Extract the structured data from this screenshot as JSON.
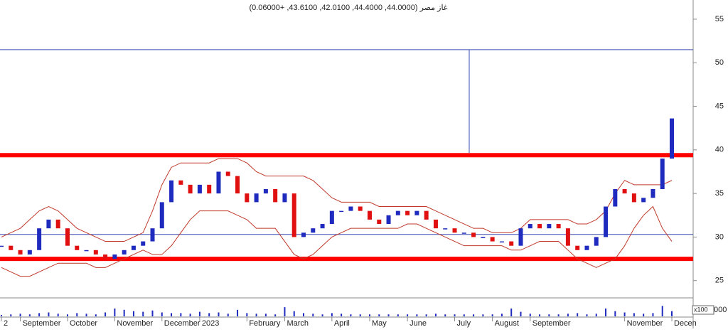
{
  "chart_data": {
    "type": "stock",
    "title": "غاز مصر (44.0000, 44.4000, 42.0100, 43.6100, +0.06000)",
    "categories": [
      "2",
      null,
      "September",
      null,
      null,
      null,
      null,
      "October",
      null,
      null,
      null,
      null,
      "November",
      null,
      null,
      null,
      null,
      "December",
      null,
      null,
      null,
      "2023",
      null,
      null,
      null,
      null,
      "February",
      null,
      null,
      null,
      "March",
      null,
      null,
      null,
      null,
      "April",
      null,
      null,
      null,
      "May",
      null,
      null,
      null,
      "June",
      null,
      null,
      null,
      null,
      "July",
      null,
      null,
      null,
      "August",
      null,
      null,
      null,
      "September",
      null,
      null,
      null,
      null,
      null,
      null,
      null,
      null,
      null,
      "November",
      null,
      null,
      null,
      null,
      "Decen"
    ],
    "close": [
      29,
      28.5,
      28,
      28.5,
      31,
      32,
      31,
      29,
      28.5,
      28.5,
      28,
      27.5,
      28,
      28.5,
      29,
      29.5,
      31,
      34,
      36.5,
      36,
      35,
      36,
      35,
      37.5,
      37,
      35,
      34,
      35,
      35.5,
      34,
      35,
      30,
      30.5,
      31,
      31.5,
      33,
      33,
      33.5,
      33,
      32,
      31.5,
      32.5,
      33,
      32.5,
      33,
      32,
      31,
      31,
      30.5,
      30.5,
      30,
      30,
      29.5,
      29.5,
      29,
      31,
      31.5,
      31,
      31.5,
      31,
      29,
      28.5,
      29,
      30,
      33.5,
      35.5,
      35,
      34,
      34.5,
      35.5,
      39,
      43.61
    ],
    "up_color": "#1f2bbf",
    "down_color": "#e01010",
    "upper_band": [
      30,
      30.5,
      31,
      32,
      33,
      33.5,
      33,
      32,
      31,
      30.5,
      30,
      29.5,
      29.5,
      29.5,
      30,
      30.5,
      33,
      36,
      38,
      38.5,
      38.5,
      38.5,
      38.5,
      39,
      39,
      39,
      38.5,
      37.5,
      37,
      37,
      37,
      37,
      37,
      36.5,
      35.5,
      34.5,
      34,
      34,
      34,
      34,
      33.5,
      33.5,
      33.5,
      33.5,
      33.5,
      33.5,
      33,
      32.5,
      32,
      31.5,
      31,
      31,
      30.5,
      30.5,
      30.5,
      31,
      32,
      32,
      32,
      32,
      32,
      31.5,
      31.5,
      32,
      33,
      35,
      36.5,
      36,
      36,
      36,
      36,
      36.5
    ],
    "lower_band": [
      26.5,
      26,
      25.5,
      25.5,
      26,
      26.5,
      27,
      27,
      27,
      27,
      26.5,
      26.5,
      27,
      27.5,
      28,
      28.5,
      28,
      28,
      29,
      30.5,
      32,
      33,
      33,
      33,
      33,
      32.5,
      32,
      31,
      31,
      31,
      29.5,
      28,
      27.5,
      28,
      29,
      30,
      30.5,
      31,
      31,
      31,
      31,
      31,
      31,
      31.5,
      31.5,
      31,
      30.5,
      30,
      29.5,
      29,
      29,
      29,
      29,
      29,
      28.5,
      28.5,
      29,
      29.5,
      29.5,
      29.5,
      28.5,
      27.5,
      27,
      26.5,
      27,
      27.5,
      29,
      31,
      32.5,
      33.5,
      31,
      29.5
    ],
    "band_color": "#c0392b",
    "levels": [
      {
        "value": 51.5,
        "color": "#3b4cb0",
        "width": 1
      },
      {
        "value": 39.4,
        "color": "#ff0000",
        "width": 6
      },
      {
        "value": 30.3,
        "color": "#3b4cb0",
        "width": 1
      },
      {
        "value": 27.5,
        "color": "#ff0000",
        "width": 6
      }
    ],
    "ylim": [
      23.1,
      57.2
    ],
    "yticks": [
      25,
      30,
      35,
      40,
      45,
      50,
      55
    ],
    "volume": [
      2,
      3,
      4,
      3,
      5,
      6,
      4,
      3,
      5,
      4,
      3,
      6,
      12,
      10,
      8,
      7,
      9,
      6,
      5,
      5,
      4,
      7,
      5,
      6,
      4,
      10,
      5,
      4,
      4,
      3,
      14,
      8,
      5,
      4,
      3,
      5,
      4,
      3,
      3,
      3,
      3,
      3,
      3,
      3,
      3,
      3,
      4,
      3,
      3,
      3,
      3,
      3,
      3,
      4,
      12,
      7,
      4,
      3,
      3,
      3,
      4,
      5,
      3,
      4,
      12,
      8,
      6,
      5,
      4,
      5,
      16,
      8
    ],
    "volume_color": "#1f2bbf",
    "vlim": [
      0,
      25
    ],
    "volume_unit": "x100",
    "volume_tick": "000"
  }
}
